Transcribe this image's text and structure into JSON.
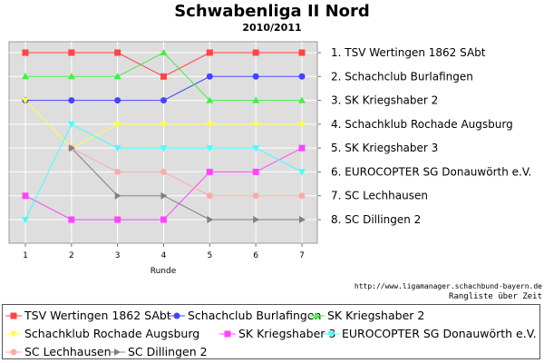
{
  "chart_data": {
    "type": "line",
    "title": "Schwabenliga II Nord",
    "subtitle": "2010/2011",
    "xlabel": "Runde",
    "ylabel": "",
    "x": [
      1,
      2,
      3,
      4,
      5,
      6,
      7
    ],
    "ylim": [
      1,
      8
    ],
    "y_inverted": true,
    "grid": true,
    "right_labels": [
      "1. TSV Wertingen 1862 SAbt",
      "2. Schachclub Burlafingen",
      "3. SK Kriegshaber 2",
      "4. Schachklub Rochade Augsburg",
      "5. SK Kriegshaber 3",
      "6. EUROCOPTER SG Donauwörth e.V.",
      "7. SC Lechhausen",
      "8. SC Dillingen 2"
    ],
    "series": [
      {
        "name": "TSV Wertingen 1862 SAbt",
        "color": "#ff4444",
        "marker": "square",
        "values": [
          1,
          1,
          1,
          2,
          1,
          1,
          1
        ]
      },
      {
        "name": "Schachclub Burlafingen",
        "color": "#4444ff",
        "marker": "circle",
        "values": [
          3,
          3,
          3,
          3,
          2,
          2,
          2
        ]
      },
      {
        "name": "SK Kriegshaber 2",
        "color": "#44ee44",
        "marker": "triangle-up",
        "values": [
          2,
          2,
          2,
          1,
          3,
          3,
          3
        ]
      },
      {
        "name": "Schachklub Rochade Augsburg",
        "color": "#ffff44",
        "marker": "triangle-down",
        "values": [
          3,
          5,
          4,
          4,
          4,
          4,
          4
        ]
      },
      {
        "name": "SK Kriegshaber 3",
        "color": "#ff44ff",
        "marker": "square",
        "values": [
          7,
          8,
          8,
          8,
          6,
          6,
          5
        ]
      },
      {
        "name": "EUROCOPTER SG Donauwörth e.V.",
        "color": "#44ffff",
        "marker": "triangle-down",
        "values": [
          8,
          4,
          5,
          5,
          5,
          5,
          6
        ]
      },
      {
        "name": "SC Lechhausen",
        "color": "#ffaaaa",
        "marker": "circle",
        "values": [
          null,
          5,
          6,
          6,
          7,
          7,
          7
        ]
      },
      {
        "name": "SC Dillingen 2",
        "color": "#808080",
        "marker": "triangle-right",
        "values": [
          null,
          5,
          7,
          7,
          8,
          8,
          8
        ]
      }
    ]
  },
  "source_url": "http://www.ligamanager.schachbund-bayern.de",
  "caption": "Rangliste über Zeit"
}
